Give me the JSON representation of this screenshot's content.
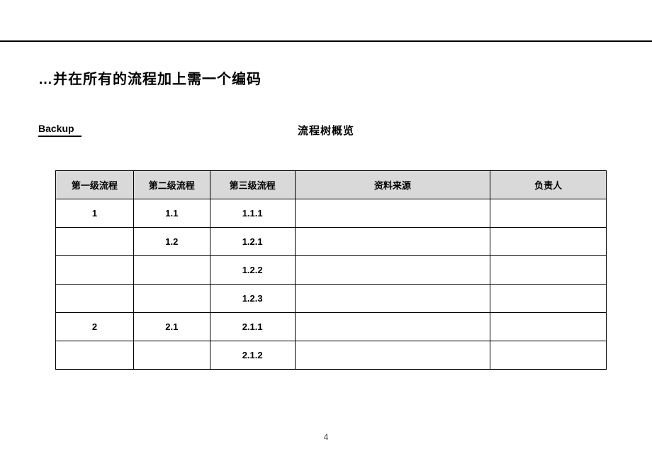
{
  "title": "…并在所有的流程加上需一个编码",
  "backupLabel": "Backup",
  "subtitle": "流程树概览",
  "pageNumber": "4",
  "table": {
    "columns": [
      "第一级流程",
      "第二级流程",
      "第三级流程",
      "资料来源",
      "负责人"
    ],
    "rows": [
      [
        "1",
        "1.1",
        "1.1.1",
        "",
        ""
      ],
      [
        "",
        "1.2",
        "1.2.1",
        "",
        ""
      ],
      [
        "",
        "",
        "1.2.2",
        "",
        ""
      ],
      [
        "",
        "",
        "1.2.3",
        "",
        ""
      ],
      [
        "2",
        "2.1",
        "2.1.1",
        "",
        ""
      ],
      [
        "",
        "",
        "2.1.2",
        "",
        ""
      ]
    ],
    "headerBg": "#d9d9d9",
    "borderColor": "#000000",
    "fontSize": 13
  }
}
